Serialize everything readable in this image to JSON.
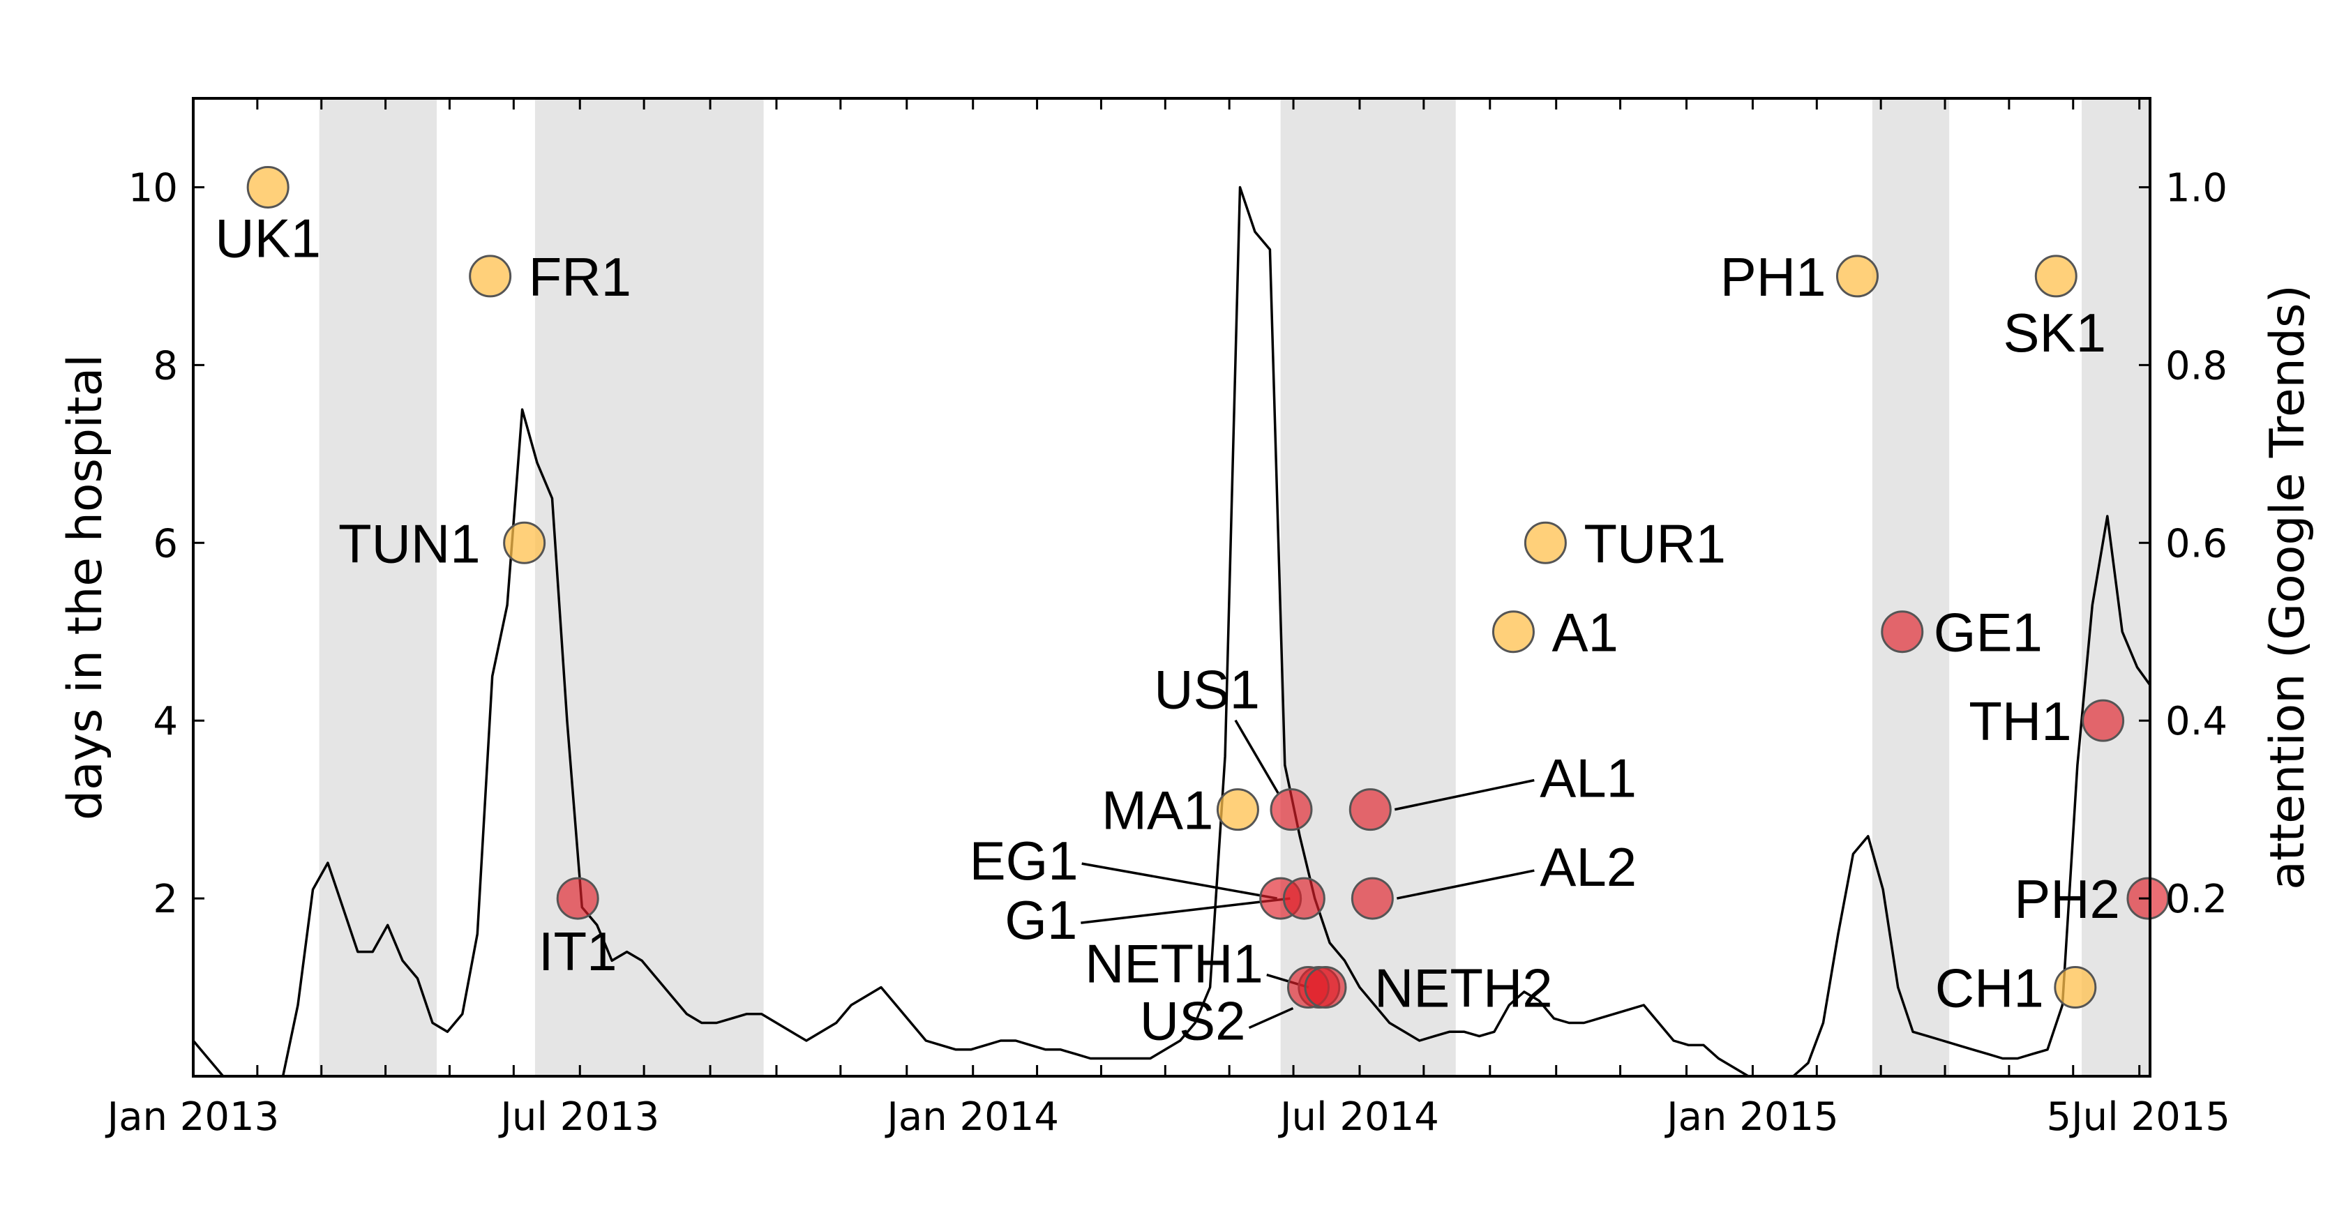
{
  "chart_data": {
    "type": "scatter",
    "title": "",
    "ylabel": "days in the hospital",
    "y2label": "attention (Google Trends)",
    "xlim": [
      "2013-01-01",
      "2015-07-06"
    ],
    "ylim": [
      0,
      11
    ],
    "y2lim": [
      0,
      1.1
    ],
    "x_ticks": [
      {
        "date": "2013-01-01",
        "label": "Jan 2013"
      },
      {
        "date": "2013-07-01",
        "label": "Jul 2013"
      },
      {
        "date": "2014-01-01",
        "label": "Jan 2014"
      },
      {
        "date": "2014-07-01",
        "label": "Jul 2014"
      },
      {
        "date": "2015-01-01",
        "label": "Jan 2015"
      },
      {
        "date": "2015-07-01",
        "label": "5Jul 2015"
      }
    ],
    "y_ticks": [
      2,
      4,
      6,
      8,
      10
    ],
    "y2_ticks": [
      0.2,
      0.4,
      0.6,
      0.8,
      1.0
    ],
    "colors": {
      "orange": "#ffc04d",
      "red": "#e0202a",
      "shade": "#e5e5e5",
      "line": "#000000"
    },
    "shaded_periods": [
      {
        "start": "2013-03-01",
        "end": "2013-04-25"
      },
      {
        "start": "2013-06-10",
        "end": "2013-09-25"
      },
      {
        "start": "2014-05-25",
        "end": "2014-08-15"
      },
      {
        "start": "2015-02-26",
        "end": "2015-04-03"
      },
      {
        "start": "2015-06-04",
        "end": "2015-07-06"
      }
    ],
    "points": [
      {
        "label": "UK1",
        "date": "2013-02-05",
        "days": 10,
        "color": "orange"
      },
      {
        "label": "FR1",
        "date": "2013-05-20",
        "days": 9,
        "color": "orange"
      },
      {
        "label": "TUN1",
        "date": "2013-06-05",
        "days": 6,
        "color": "orange"
      },
      {
        "label": "IT1",
        "date": "2013-06-30",
        "days": 2,
        "color": "red"
      },
      {
        "label": "MA1",
        "date": "2014-05-05",
        "days": 3,
        "color": "orange"
      },
      {
        "label": "US1",
        "date": "2014-05-30",
        "days": 3,
        "color": "red"
      },
      {
        "label": "AL1",
        "date": "2014-07-06",
        "days": 3,
        "color": "red"
      },
      {
        "label": "EG1",
        "date": "2014-05-25",
        "days": 2,
        "color": "red"
      },
      {
        "label": "G1",
        "date": "2014-06-05",
        "days": 2,
        "color": "red"
      },
      {
        "label": "AL2",
        "date": "2014-07-07",
        "days": 2,
        "color": "red"
      },
      {
        "label": "NETH1",
        "date": "2014-06-12",
        "days": 1,
        "color": "red"
      },
      {
        "label": "US2",
        "date": "2014-06-07",
        "days": 1,
        "color": "red"
      },
      {
        "label": "NETH2",
        "date": "2014-06-15",
        "days": 1,
        "color": "red"
      },
      {
        "label": "TUR1",
        "date": "2014-09-26",
        "days": 6,
        "color": "orange"
      },
      {
        "label": "A1",
        "date": "2014-09-11",
        "days": 5,
        "color": "orange"
      },
      {
        "label": "PH1",
        "date": "2015-02-19",
        "days": 9,
        "color": "orange"
      },
      {
        "label": "GE1",
        "date": "2015-03-12",
        "days": 5,
        "color": "red"
      },
      {
        "label": "SK1",
        "date": "2015-05-23",
        "days": 9,
        "color": "orange"
      },
      {
        "label": "TH1",
        "date": "2015-06-14",
        "days": 4,
        "color": "red"
      },
      {
        "label": "PH2",
        "date": "2015-07-05",
        "days": 2,
        "color": "red"
      },
      {
        "label": "CH1",
        "date": "2015-06-01",
        "days": 1,
        "color": "orange"
      }
    ],
    "trend_series": {
      "name": "",
      "points": [
        [
          "2013-01-01",
          0.04
        ],
        [
          "2013-01-08",
          0.02
        ],
        [
          "2013-01-15",
          0.0
        ],
        [
          "2013-01-22",
          0.0
        ],
        [
          "2013-01-29",
          0.0
        ],
        [
          "2013-02-05",
          0.0
        ],
        [
          "2013-02-12",
          0.0
        ],
        [
          "2013-02-19",
          0.08
        ],
        [
          "2013-02-26",
          0.21
        ],
        [
          "2013-03-05",
          0.24
        ],
        [
          "2013-03-12",
          0.19
        ],
        [
          "2013-03-19",
          0.14
        ],
        [
          "2013-03-26",
          0.14
        ],
        [
          "2013-04-02",
          0.17
        ],
        [
          "2013-04-09",
          0.13
        ],
        [
          "2013-04-16",
          0.11
        ],
        [
          "2013-04-23",
          0.06
        ],
        [
          "2013-04-30",
          0.05
        ],
        [
          "2013-05-07",
          0.07
        ],
        [
          "2013-05-14",
          0.16
        ],
        [
          "2013-05-21",
          0.45
        ],
        [
          "2013-05-28",
          0.53
        ],
        [
          "2013-06-04",
          0.75
        ],
        [
          "2013-06-11",
          0.69
        ],
        [
          "2013-06-18",
          0.65
        ],
        [
          "2013-06-25",
          0.4
        ],
        [
          "2013-07-02",
          0.19
        ],
        [
          "2013-07-09",
          0.17
        ],
        [
          "2013-07-16",
          0.13
        ],
        [
          "2013-07-23",
          0.14
        ],
        [
          "2013-07-30",
          0.13
        ],
        [
          "2013-08-06",
          0.11
        ],
        [
          "2013-08-13",
          0.09
        ],
        [
          "2013-08-20",
          0.07
        ],
        [
          "2013-08-27",
          0.06
        ],
        [
          "2013-09-03",
          0.06
        ],
        [
          "2013-09-10",
          0.065
        ],
        [
          "2013-09-17",
          0.07
        ],
        [
          "2013-09-24",
          0.07
        ],
        [
          "2013-10-01",
          0.06
        ],
        [
          "2013-10-08",
          0.05
        ],
        [
          "2013-10-15",
          0.04
        ],
        [
          "2013-10-22",
          0.05
        ],
        [
          "2013-10-29",
          0.06
        ],
        [
          "2013-11-05",
          0.08
        ],
        [
          "2013-11-12",
          0.09
        ],
        [
          "2013-11-19",
          0.1
        ],
        [
          "2013-11-26",
          0.08
        ],
        [
          "2013-12-03",
          0.06
        ],
        [
          "2013-12-10",
          0.04
        ],
        [
          "2013-12-17",
          0.035
        ],
        [
          "2013-12-24",
          0.03
        ],
        [
          "2013-12-31",
          0.03
        ],
        [
          "2014-01-07",
          0.035
        ],
        [
          "2014-01-14",
          0.04
        ],
        [
          "2014-01-21",
          0.04
        ],
        [
          "2014-01-28",
          0.035
        ],
        [
          "2014-02-04",
          0.03
        ],
        [
          "2014-02-11",
          0.03
        ],
        [
          "2014-02-18",
          0.025
        ],
        [
          "2014-02-25",
          0.02
        ],
        [
          "2014-03-04",
          0.02
        ],
        [
          "2014-03-11",
          0.02
        ],
        [
          "2014-03-18",
          0.02
        ],
        [
          "2014-03-25",
          0.02
        ],
        [
          "2014-04-01",
          0.03
        ],
        [
          "2014-04-08",
          0.04
        ],
        [
          "2014-04-15",
          0.06
        ],
        [
          "2014-04-22",
          0.1
        ],
        [
          "2014-04-29",
          0.36
        ],
        [
          "2014-05-06",
          1.0
        ],
        [
          "2014-05-13",
          0.95
        ],
        [
          "2014-05-20",
          0.93
        ],
        [
          "2014-05-27",
          0.35
        ],
        [
          "2014-06-03",
          0.27
        ],
        [
          "2014-06-10",
          0.2
        ],
        [
          "2014-06-17",
          0.15
        ],
        [
          "2014-06-24",
          0.13
        ],
        [
          "2014-07-01",
          0.1
        ],
        [
          "2014-07-08",
          0.08
        ],
        [
          "2014-07-15",
          0.06
        ],
        [
          "2014-07-22",
          0.05
        ],
        [
          "2014-07-29",
          0.04
        ],
        [
          "2014-08-05",
          0.045
        ],
        [
          "2014-08-12",
          0.05
        ],
        [
          "2014-08-19",
          0.05
        ],
        [
          "2014-08-26",
          0.045
        ],
        [
          "2014-09-02",
          0.05
        ],
        [
          "2014-09-09",
          0.08
        ],
        [
          "2014-09-16",
          0.095
        ],
        [
          "2014-09-23",
          0.085
        ],
        [
          "2014-09-30",
          0.065
        ],
        [
          "2014-10-07",
          0.06
        ],
        [
          "2014-10-14",
          0.06
        ],
        [
          "2014-10-21",
          0.065
        ],
        [
          "2014-10-28",
          0.07
        ],
        [
          "2014-11-04",
          0.075
        ],
        [
          "2014-11-11",
          0.08
        ],
        [
          "2014-11-18",
          0.06
        ],
        [
          "2014-11-25",
          0.04
        ],
        [
          "2014-12-02",
          0.035
        ],
        [
          "2014-12-09",
          0.035
        ],
        [
          "2014-12-16",
          0.02
        ],
        [
          "2014-12-23",
          0.01
        ],
        [
          "2014-12-30",
          0.0
        ],
        [
          "2015-01-06",
          0.0
        ],
        [
          "2015-01-13",
          0.0
        ],
        [
          "2015-01-20",
          0.0
        ],
        [
          "2015-01-27",
          0.015
        ],
        [
          "2015-02-03",
          0.06
        ],
        [
          "2015-02-10",
          0.16
        ],
        [
          "2015-02-17",
          0.25
        ],
        [
          "2015-02-24",
          0.27
        ],
        [
          "2015-03-03",
          0.21
        ],
        [
          "2015-03-10",
          0.1
        ],
        [
          "2015-03-17",
          0.05
        ],
        [
          "2015-03-24",
          0.045
        ],
        [
          "2015-03-31",
          0.04
        ],
        [
          "2015-04-07",
          0.035
        ],
        [
          "2015-04-14",
          0.03
        ],
        [
          "2015-04-21",
          0.025
        ],
        [
          "2015-04-28",
          0.02
        ],
        [
          "2015-05-05",
          0.02
        ],
        [
          "2015-05-12",
          0.025
        ],
        [
          "2015-05-19",
          0.03
        ],
        [
          "2015-05-26",
          0.08
        ],
        [
          "2015-06-02",
          0.35
        ],
        [
          "2015-06-09",
          0.53
        ],
        [
          "2015-06-16",
          0.63
        ],
        [
          "2015-06-23",
          0.5
        ],
        [
          "2015-06-30",
          0.46
        ],
        [
          "2015-07-06",
          0.44
        ]
      ]
    }
  }
}
